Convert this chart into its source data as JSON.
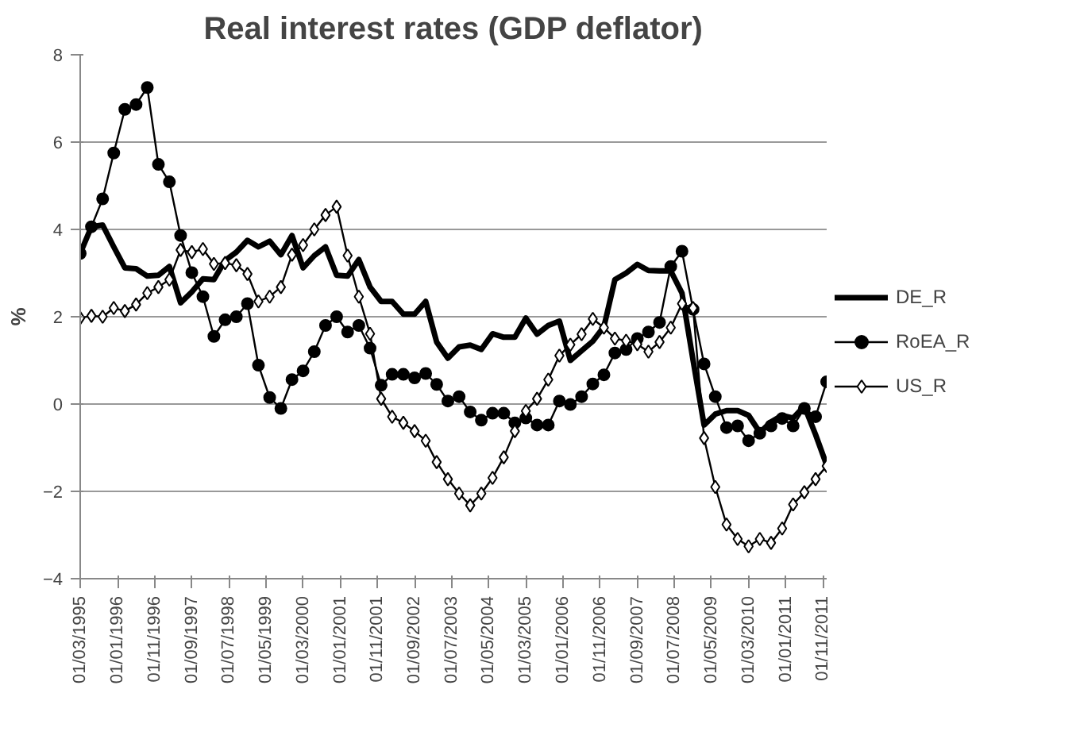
{
  "chart_data": {
    "type": "line",
    "title": "Real interest rates (GDP deflator)",
    "ylabel": "%",
    "x": [
      "1995-03",
      "1995-06",
      "1995-09",
      "1995-12",
      "1996-03",
      "1996-06",
      "1996-09",
      "1996-12",
      "1997-03",
      "1997-06",
      "1997-09",
      "1997-12",
      "1998-03",
      "1998-06",
      "1998-09",
      "1998-12",
      "1999-03",
      "1999-06",
      "1999-09",
      "1999-12",
      "2000-03",
      "2000-06",
      "2000-09",
      "2000-12",
      "2001-03",
      "2001-06",
      "2001-09",
      "2001-12",
      "2002-03",
      "2002-06",
      "2002-09",
      "2002-12",
      "2003-03",
      "2003-06",
      "2003-09",
      "2003-12",
      "2004-03",
      "2004-06",
      "2004-09",
      "2004-12",
      "2005-03",
      "2005-06",
      "2005-09",
      "2005-12",
      "2006-03",
      "2006-06",
      "2006-09",
      "2006-12",
      "2007-03",
      "2007-06",
      "2007-09",
      "2007-12",
      "2008-03",
      "2008-06",
      "2008-09",
      "2008-12",
      "2009-03",
      "2009-06",
      "2009-09",
      "2009-12",
      "2010-03",
      "2010-06",
      "2010-09",
      "2010-12",
      "2011-03",
      "2011-06",
      "2011-09",
      "2011-12"
    ],
    "series": [
      {
        "name": "DE_R",
        "color": "#000000",
        "marker": "none",
        "values": [
          3.45,
          4.06,
          4.1,
          3.6,
          3.12,
          3.1,
          2.93,
          2.95,
          3.15,
          2.32,
          2.57,
          2.87,
          2.85,
          3.29,
          3.48,
          3.75,
          3.6,
          3.73,
          3.42,
          3.86,
          3.12,
          3.4,
          3.6,
          2.95,
          2.93,
          3.31,
          2.68,
          2.35,
          2.35,
          2.06,
          2.06,
          2.35,
          1.42,
          1.05,
          1.31,
          1.35,
          1.25,
          1.61,
          1.53,
          1.53,
          1.97,
          1.6,
          1.8,
          1.9,
          1.0,
          1.22,
          1.44,
          1.77,
          2.85,
          3.0,
          3.2,
          3.06,
          3.05,
          3.05,
          2.54,
          1.0,
          -0.48,
          -0.23,
          -0.15,
          -0.15,
          -0.26,
          -0.65,
          -0.41,
          -0.26,
          -0.32,
          -0.05,
          -0.7,
          -1.4
        ]
      },
      {
        "name": "RoEA_R",
        "color": "#000000",
        "marker": "circle",
        "values": [
          3.45,
          4.06,
          4.7,
          5.75,
          6.75,
          6.86,
          7.25,
          5.49,
          5.09,
          3.86,
          3.01,
          2.46,
          1.55,
          1.93,
          2.0,
          2.3,
          0.89,
          0.15,
          -0.1,
          0.56,
          0.76,
          1.2,
          1.8,
          2.0,
          1.65,
          1.8,
          1.28,
          0.43,
          0.68,
          0.68,
          0.6,
          0.7,
          0.45,
          0.07,
          0.17,
          -0.18,
          -0.37,
          -0.21,
          -0.21,
          -0.43,
          -0.32,
          -0.48,
          -0.48,
          0.07,
          -0.01,
          0.17,
          0.46,
          0.67,
          1.17,
          1.25,
          1.5,
          1.65,
          1.87,
          3.15,
          3.5,
          2.17,
          0.92,
          0.17,
          -0.54,
          -0.5,
          -0.84,
          -0.67,
          -0.5,
          -0.33,
          -0.5,
          -0.1,
          -0.29,
          0.51
        ]
      },
      {
        "name": "US_R",
        "color": "#000000",
        "marker": "diamond",
        "values": [
          1.97,
          2.02,
          2.0,
          2.2,
          2.13,
          2.28,
          2.54,
          2.68,
          2.85,
          3.53,
          3.48,
          3.55,
          3.21,
          3.23,
          3.18,
          2.98,
          2.35,
          2.46,
          2.68,
          3.42,
          3.64,
          4.0,
          4.33,
          4.52,
          3.4,
          2.46,
          1.61,
          0.12,
          -0.29,
          -0.43,
          -0.62,
          -0.84,
          -1.33,
          -1.72,
          -2.05,
          -2.32,
          -2.05,
          -1.69,
          -1.22,
          -0.62,
          -0.16,
          0.12,
          0.56,
          1.11,
          1.36,
          1.6,
          1.95,
          1.75,
          1.5,
          1.45,
          1.37,
          1.2,
          1.42,
          1.75,
          2.3,
          2.2,
          -0.78,
          -1.9,
          -2.76,
          -3.09,
          -3.26,
          -3.09,
          -3.18,
          -2.85,
          -2.3,
          -2.02,
          -1.72,
          -1.42
        ]
      }
    ],
    "xlim": [
      "1995-03",
      "2011-12"
    ],
    "xticks": [
      {
        "value": "1995-03",
        "label": "01/03/1995"
      },
      {
        "value": "1996-01",
        "label": "01/01/1996"
      },
      {
        "value": "1996-11",
        "label": "01/11/1996"
      },
      {
        "value": "1997-09",
        "label": "01/09/1997"
      },
      {
        "value": "1998-07",
        "label": "01/07/1998"
      },
      {
        "value": "1999-05",
        "label": "01/05/1999"
      },
      {
        "value": "2000-03",
        "label": "01/03/2000"
      },
      {
        "value": "2001-01",
        "label": "01/01/2001"
      },
      {
        "value": "2001-11",
        "label": "01/11/2001"
      },
      {
        "value": "2002-09",
        "label": "01/09/2002"
      },
      {
        "value": "2003-07",
        "label": "01/07/2003"
      },
      {
        "value": "2004-05",
        "label": "01/05/2004"
      },
      {
        "value": "2005-03",
        "label": "01/03/2005"
      },
      {
        "value": "2006-01",
        "label": "01/01/2006"
      },
      {
        "value": "2006-11",
        "label": "01/11/2006"
      },
      {
        "value": "2007-09",
        "label": "01/09/2007"
      },
      {
        "value": "2008-07",
        "label": "01/07/2008"
      },
      {
        "value": "2009-05",
        "label": "01/05/2009"
      },
      {
        "value": "2010-03",
        "label": "01/03/2010"
      },
      {
        "value": "2011-01",
        "label": "01/01/2011"
      },
      {
        "value": "2011-11",
        "label": "01/11/2011"
      }
    ],
    "ylim": [
      -4,
      8
    ],
    "yticks": [
      -4,
      -2,
      0,
      2,
      4,
      6,
      8
    ],
    "grid": "y",
    "legend": "right"
  }
}
